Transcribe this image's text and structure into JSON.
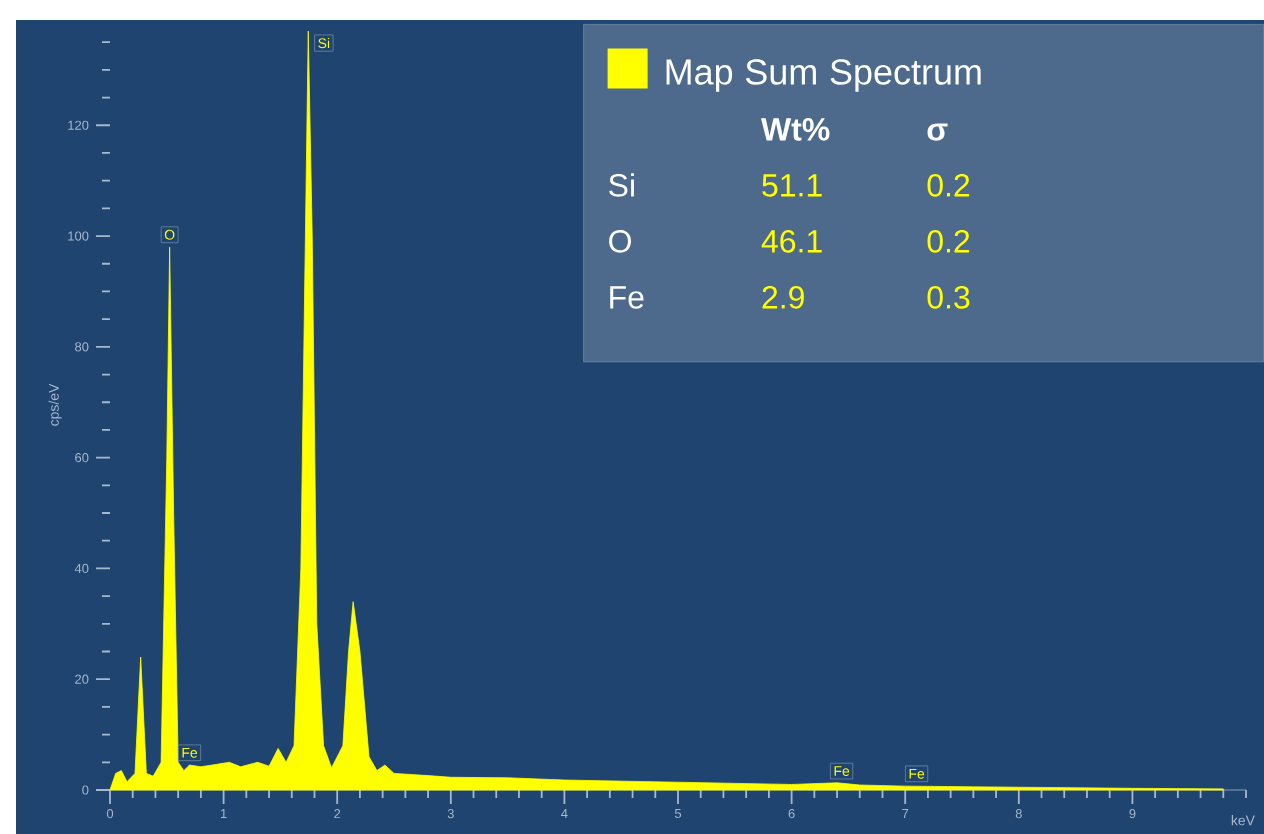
{
  "chart_data": {
    "type": "area",
    "xlabel": "keV",
    "ylabel": "cps/eV",
    "xlim": [
      0,
      10
    ],
    "ylim": [
      0,
      139
    ],
    "xticks": [
      0,
      {
        "value": 0.2,
        "label": null
      },
      {
        "value": 0.4,
        "label": null
      },
      {
        "value": 0.6,
        "label": null
      },
      {
        "value": 0.8,
        "label": null
      },
      1,
      {
        "value": 1.2,
        "label": null
      },
      {
        "value": 1.4,
        "label": null
      },
      {
        "value": 1.6,
        "label": null
      },
      {
        "value": 1.8,
        "label": null
      },
      2,
      {
        "value": 2.2,
        "label": null
      },
      {
        "value": 2.4,
        "label": null
      },
      {
        "value": 2.6,
        "label": null
      },
      {
        "value": 2.8,
        "label": null
      },
      3,
      {
        "value": 3.2,
        "label": null
      },
      {
        "value": 3.4,
        "label": null
      },
      {
        "value": 3.6,
        "label": null
      },
      {
        "value": 3.8,
        "label": null
      },
      4,
      {
        "value": 4.2,
        "label": null
      },
      {
        "value": 4.4,
        "label": null
      },
      {
        "value": 4.6,
        "label": null
      },
      {
        "value": 4.8,
        "label": null
      },
      5,
      {
        "value": 5.2,
        "label": null
      },
      {
        "value": 5.4,
        "label": null
      },
      {
        "value": 5.6,
        "label": null
      },
      {
        "value": 5.8,
        "label": null
      },
      6,
      {
        "value": 6.2,
        "label": null
      },
      {
        "value": 6.4,
        "label": null
      },
      {
        "value": 6.6,
        "label": null
      },
      {
        "value": 6.8,
        "label": null
      },
      7,
      {
        "value": 7.2,
        "label": null
      },
      {
        "value": 7.4,
        "label": null
      },
      {
        "value": 7.6,
        "label": null
      },
      {
        "value": 7.8,
        "label": null
      },
      8,
      {
        "value": 8.2,
        "label": null
      },
      {
        "value": 8.4,
        "label": null
      },
      {
        "value": 8.6,
        "label": null
      },
      {
        "value": 8.8,
        "label": null
      },
      9,
      {
        "value": 9.2,
        "label": null
      },
      {
        "value": 9.4,
        "label": null
      },
      {
        "value": 9.6,
        "label": null
      },
      {
        "value": 9.8,
        "label": null
      },
      {
        "value": 10,
        "label": null
      }
    ],
    "yticks": [
      0,
      {
        "value": 5,
        "label": null
      },
      {
        "value": 10,
        "label": null
      },
      {
        "value": 15,
        "label": null
      },
      20,
      {
        "value": 25,
        "label": null
      },
      {
        "value": 30,
        "label": null
      },
      {
        "value": 35,
        "label": null
      },
      40,
      {
        "value": 45,
        "label": null
      },
      {
        "value": 50,
        "label": null
      },
      {
        "value": 55,
        "label": null
      },
      60,
      {
        "value": 65,
        "label": null
      },
      {
        "value": 70,
        "label": null
      },
      {
        "value": 75,
        "label": null
      },
      80,
      {
        "value": 85,
        "label": null
      },
      {
        "value": 90,
        "label": null
      },
      {
        "value": 95,
        "label": null
      },
      100,
      {
        "value": 105,
        "label": null
      },
      {
        "value": 110,
        "label": null
      },
      {
        "value": 115,
        "label": null
      },
      120,
      {
        "value": 125,
        "label": null
      },
      {
        "value": 130,
        "label": null
      },
      {
        "value": 135,
        "label": null
      }
    ],
    "legend": "top right",
    "series": [
      {
        "name": "Map Sum Spectrum",
        "color": "#ffff00",
        "x": [
          0,
          0.05,
          0.1,
          0.15,
          0.22,
          0.27,
          0.32,
          0.38,
          0.45,
          0.5,
          0.525,
          0.56,
          0.6,
          0.65,
          0.7,
          0.8,
          0.9,
          1.05,
          1.15,
          1.3,
          1.4,
          1.48,
          1.55,
          1.62,
          1.68,
          1.72,
          1.745,
          1.78,
          1.82,
          1.88,
          1.95,
          2.05,
          2.1,
          2.14,
          2.2,
          2.28,
          2.35,
          2.42,
          2.5,
          2.8,
          3.0,
          3.5,
          4.0,
          5.0,
          6.0,
          6.4,
          6.6,
          7.0,
          8.0,
          9.0,
          9.8
        ],
        "values": [
          0,
          3,
          3.5,
          1.5,
          3,
          24,
          3,
          2.5,
          5,
          60,
          98,
          50,
          5,
          3.5,
          4.5,
          4.2,
          4.5,
          5,
          4.2,
          5,
          4.3,
          7.5,
          5,
          8,
          40,
          100,
          137,
          100,
          30,
          8,
          4,
          8,
          25,
          34,
          25,
          6,
          3.5,
          4.5,
          3,
          2.6,
          2.3,
          2.2,
          1.8,
          1.4,
          1.0,
          1.3,
          0.9,
          0.7,
          0.5,
          0.3,
          0.2
        ]
      }
    ],
    "annotations": [
      {
        "text": "O",
        "x": 0.525,
        "y": 98
      },
      {
        "text": "Si",
        "x": 1.745,
        "y": 137
      },
      {
        "text": "Fe",
        "x": 0.7,
        "y": 4.5
      },
      {
        "text": "Fe",
        "x": 6.44,
        "y": 1.2
      },
      {
        "text": "Fe",
        "x": 7.1,
        "y": 0.7
      },
      "Wt%",
      "σ",
      "Si",
      "51.1",
      "0.2",
      "O",
      "46.1",
      "0.2",
      "Fe",
      "2.9",
      "0.3"
    ]
  }
}
